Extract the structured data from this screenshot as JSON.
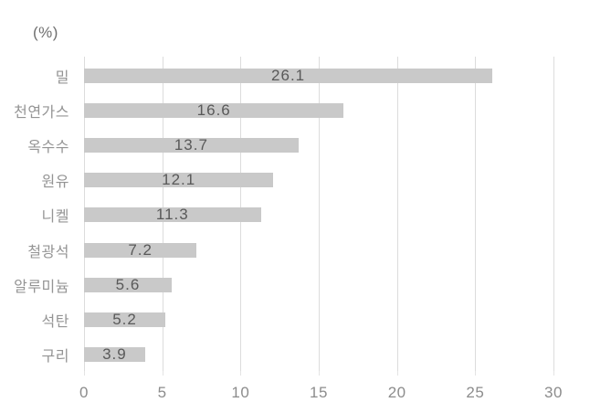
{
  "unit_label": "(%)",
  "chart_data": {
    "type": "bar",
    "orientation": "horizontal",
    "title": "",
    "xlabel": "",
    "ylabel": "",
    "unit_label": "(%)",
    "categories": [
      "밀",
      "천연가스",
      "옥수수",
      "원유",
      "니켈",
      "철광석",
      "알루미늄",
      "석탄",
      "구리"
    ],
    "values": [
      26.1,
      16.6,
      13.7,
      12.1,
      11.3,
      7.2,
      5.6,
      5.2,
      3.9
    ],
    "value_labels": [
      "26.1",
      "16.6",
      "13.7",
      "12.1",
      "11.3",
      "7.2",
      "5.6",
      "5.2",
      "3.9"
    ],
    "xticks": [
      "0",
      "5",
      "10",
      "15",
      "20",
      "25",
      "30"
    ],
    "xtick_values": [
      0,
      5,
      10,
      15,
      20,
      25,
      30
    ],
    "xlim": [
      0,
      30
    ],
    "grid": "vertical-on",
    "legend": "none",
    "value_label_position": "centered-inside-bar",
    "colors": {
      "background": "#ffffff",
      "bar_fill": "#c9c9c9",
      "gridline": "#dcdcdc",
      "value_label": "#595959",
      "category_label": "#949494",
      "tick_label": "#8c8c8c",
      "unit_label": "#6f6f6f"
    }
  }
}
